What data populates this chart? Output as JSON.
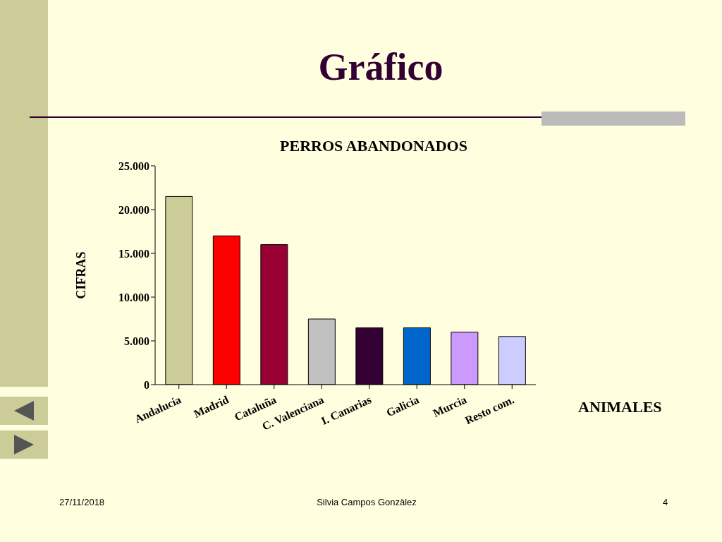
{
  "chart_data": {
    "type": "bar",
    "title": "Gráfico",
    "subtitle": "PERROS ABANDONADOS",
    "xlabel": "ANIMALES",
    "ylabel": "CIFRAS",
    "categories": [
      "Andalucía",
      "Madrid",
      "Cataluña",
      "C. Valenciana",
      "I. Canarias",
      "Galicia",
      "Murcia",
      "Resto com."
    ],
    "values": [
      21500,
      17000,
      16000,
      7500,
      6500,
      6500,
      6000,
      5500
    ],
    "colors": [
      "#cccc99",
      "#ff0000",
      "#990033",
      "#c0c0c0",
      "#330033",
      "#0066cc",
      "#cc99ff",
      "#ccccff"
    ],
    "ylim": [
      0,
      25000
    ],
    "yticks": [
      0,
      {
        "value": 5000,
        "label": "5.000"
      },
      {
        "value": 10000,
        "label": "10.000"
      },
      {
        "value": 15000,
        "label": "15.000"
      },
      {
        "value": 20000,
        "label": "20.000"
      },
      {
        "value": 25000,
        "label": "25.000"
      }
    ],
    "grid": false,
    "annotations": [
      "27/11/2018",
      "Silvia Campos Gonzàlez",
      "4"
    ]
  }
}
